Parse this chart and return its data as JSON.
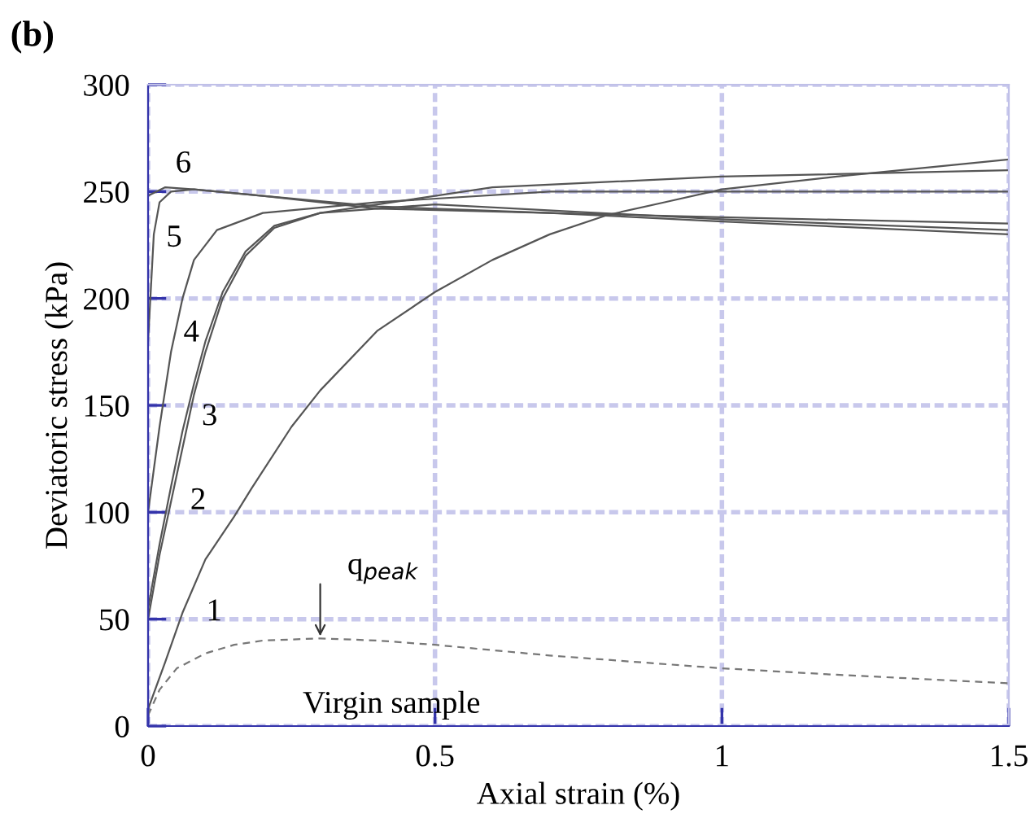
{
  "chart_data": {
    "type": "line",
    "xlabel": "Axial strain (%)",
    "ylabel": "Deviatoric stress (kPa)",
    "xlim": [
      0,
      1.5
    ],
    "ylim": [
      0,
      300
    ],
    "xticks": [
      0,
      0.5,
      1,
      1.5
    ],
    "yticks": [
      0,
      50,
      100,
      150,
      200,
      250,
      300
    ],
    "grid": true,
    "marker": "none",
    "series": [
      {
        "name": "1",
        "color": "#555555",
        "line_style": "solid",
        "x": [
          0,
          0.03,
          0.06,
          0.1,
          0.15,
          0.18,
          0.25,
          0.3,
          0.4,
          0.5,
          0.6,
          0.7,
          0.8,
          0.9,
          1.0,
          1.2,
          1.5
        ],
        "values": [
          8,
          30,
          53,
          78,
          98,
          111,
          140,
          157,
          185,
          203,
          218,
          230,
          239,
          245,
          251,
          257,
          265
        ]
      },
      {
        "name": "2",
        "color": "#555555",
        "line_style": "solid",
        "x": [
          0,
          0.02,
          0.04,
          0.06,
          0.08,
          0.1,
          0.13,
          0.17,
          0.22,
          0.3,
          0.4,
          0.6,
          1.0,
          1.5
        ],
        "values": [
          50,
          80,
          105,
          130,
          155,
          175,
          200,
          220,
          233,
          240,
          244,
          252,
          257,
          260
        ]
      },
      {
        "name": "3",
        "color": "#555555",
        "line_style": "solid",
        "x": [
          0,
          0.02,
          0.04,
          0.06,
          0.08,
          0.1,
          0.13,
          0.17,
          0.22,
          0.3,
          0.5,
          1.0,
          1.5
        ],
        "values": [
          55,
          85,
          112,
          138,
          160,
          180,
          203,
          222,
          234,
          240,
          244,
          237,
          232
        ]
      },
      {
        "name": "4",
        "color": "#555555",
        "line_style": "solid",
        "x": [
          0,
          0.02,
          0.04,
          0.06,
          0.08,
          0.12,
          0.2,
          0.4,
          0.7,
          1.0,
          1.5
        ],
        "values": [
          100,
          140,
          175,
          200,
          218,
          232,
          240,
          245,
          250,
          250,
          250
        ]
      },
      {
        "name": "5",
        "color": "#555555",
        "line_style": "solid",
        "x": [
          0,
          0.01,
          0.02,
          0.04,
          0.08,
          0.2,
          0.4,
          0.7,
          1.0,
          1.5
        ],
        "values": [
          180,
          230,
          245,
          250,
          251,
          248,
          243,
          240,
          236,
          230
        ]
      },
      {
        "name": "6",
        "color": "#555555",
        "line_style": "solid",
        "x": [
          0,
          0.03,
          0.08,
          0.2,
          0.4,
          0.7,
          1.0,
          1.5
        ],
        "values": [
          248,
          252,
          251,
          248,
          242,
          240,
          238,
          235
        ]
      },
      {
        "name": "Virgin sample",
        "color": "#777777",
        "line_style": "dashed",
        "x": [
          0,
          0.02,
          0.05,
          0.1,
          0.15,
          0.2,
          0.3,
          0.4,
          0.5,
          0.7,
          1.0,
          1.2,
          1.5
        ],
        "values": [
          5,
          17,
          27,
          34,
          38,
          40,
          41,
          40,
          38,
          33,
          27,
          24,
          20
        ]
      }
    ],
    "annotations": [
      "(b)",
      {
        "text": "q$_{peak}$",
        "x": 0.3,
        "y": 41
      }
    ]
  }
}
